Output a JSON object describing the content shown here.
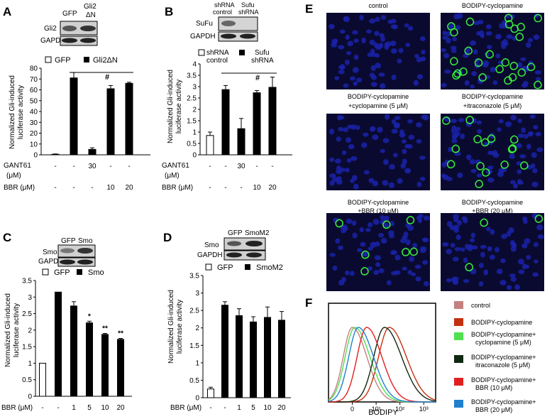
{
  "panels": {
    "A": {
      "label": "A",
      "blot": {
        "lanes": [
          "GFP",
          "Gli2",
          "ΔN"
        ],
        "rows": [
          "Gli2",
          "GAPDH"
        ]
      },
      "legend": [
        {
          "name": "GFP",
          "fill": "#ffffff"
        },
        {
          "name": "Gli2ΔN",
          "fill": "#000000"
        }
      ],
      "ylabel": [
        "Normalized Gli-induced",
        "luciferase activity"
      ],
      "ticks": [
        "0",
        "10",
        "20",
        "30",
        "40",
        "50",
        "60",
        "70",
        "80"
      ],
      "row_labels": [
        "GANT61",
        "(μM)",
        "BBR (μM)"
      ],
      "gant61": [
        "-",
        "-",
        "30",
        "-",
        "-"
      ],
      "bbr": [
        "-",
        "-",
        "-",
        "10",
        "20"
      ],
      "sig": "#"
    },
    "B": {
      "label": "B",
      "blot": {
        "lanes": [
          "shRNA",
          "control",
          "Sufu",
          "shRNA"
        ],
        "rows": [
          "SuFu",
          "GAPDH"
        ]
      },
      "legend": [
        {
          "name1": "shRNA",
          "name2": "control",
          "fill": "#ffffff"
        },
        {
          "name1": "Sufu",
          "name2": "shRNA",
          "fill": "#000000"
        }
      ],
      "ylabel": [
        "Normalized Gli-induced",
        "luciferase activity"
      ],
      "ticks": [
        "0",
        "0.5",
        "1",
        "1.5",
        "2",
        "2.5",
        "3",
        "3.5",
        "4"
      ],
      "row_labels": [
        "GANT61",
        "(μM)",
        "BBR (μM)"
      ],
      "gant61": [
        "-",
        "-",
        "30",
        "-",
        "-"
      ],
      "bbr": [
        "-",
        "-",
        "-",
        "10",
        "20"
      ],
      "sig": "#"
    },
    "C": {
      "label": "C",
      "blot": {
        "lanes": [
          "GFP",
          "Smo"
        ],
        "rows": [
          "Smo",
          "GAPDH"
        ]
      },
      "legend": [
        {
          "name": "GFP",
          "fill": "#ffffff"
        },
        {
          "name": "Smo",
          "fill": "#000000"
        }
      ],
      "ylabel": [
        "Normalized Gli-induced",
        "luciferase activity"
      ],
      "ticks": [
        "0",
        "0.5",
        "1",
        "1.5",
        "2",
        "2.5",
        "3",
        "3.5"
      ],
      "row_label": "BBR (μM)",
      "bbr": [
        "-",
        "-",
        "1",
        "5",
        "10",
        "20"
      ],
      "sig": [
        "",
        "",
        "",
        "*",
        "**",
        "**"
      ]
    },
    "D": {
      "label": "D",
      "blot": {
        "lanes": [
          "GFP",
          "SmoM2"
        ],
        "rows": [
          "Smo",
          "GAPDH"
        ]
      },
      "legend": [
        {
          "name": "GFP",
          "fill": "#ffffff"
        },
        {
          "name": "SmoM2",
          "fill": "#000000"
        }
      ],
      "ylabel": [
        "Normalized Gli-induced",
        "luciferase activity"
      ],
      "ticks": [
        "0",
        "0.5",
        "1",
        "1.5",
        "2",
        "2.5",
        "3",
        "3.5"
      ],
      "row_label": "BBR (μM)",
      "bbr": [
        "-",
        "-",
        "1",
        "5",
        "10",
        "20"
      ]
    },
    "E": {
      "label": "E",
      "images": [
        {
          "lines": [
            "control"
          ],
          "cells": []
        },
        {
          "lines": [
            "BODIPY-cyclopamine"
          ],
          "cells": []
        },
        {
          "lines": [
            "BODIPY-cyclopamine",
            "+cyclopamine (5 μM)"
          ],
          "cells": []
        },
        {
          "lines": [
            "BODIPY-cyclopamine",
            "+itraconazole (5 μM)"
          ],
          "cells": []
        },
        {
          "lines": [
            "BODIPY-cyclopamine",
            "+BBR (10 μM)"
          ],
          "cells": []
        },
        {
          "lines": [
            "BODIPY-cyclopamine",
            "+BBR (20 μM)"
          ],
          "cells": []
        }
      ],
      "colors": {
        "nuclei": "#1a22a8",
        "bodipy": "#3cff3c",
        "background": "#0a0a30"
      }
    },
    "F": {
      "label": "F",
      "xlabel": "BODIPY",
      "xticks": [
        "0",
        "10¹",
        "10²",
        "10³"
      ],
      "legend": [
        {
          "lines": [
            "control"
          ],
          "color": "#c48080"
        },
        {
          "lines": [
            "BODIPY-cyclopamine"
          ],
          "color": "#c43010"
        },
        {
          "lines": [
            "BODIPY-cyclopamine+",
            "cyclopamine (5 μM)"
          ],
          "color": "#50e050"
        },
        {
          "lines": [
            "BODIPY-cyclopamine+",
            "itraconazole (5 μM)"
          ],
          "color": "#102810"
        },
        {
          "lines": [
            "BODIPY-cyclopamine+",
            "BBR (10 μM)"
          ],
          "color": "#e02020"
        },
        {
          "lines": [
            "BODIPY-cyclopamine+",
            "BBR (20 μM)"
          ],
          "color": "#2080d0"
        }
      ]
    }
  },
  "chart_data": [
    {
      "type": "bar",
      "panel": "A",
      "ylabel": "Normalized Gli-induced luciferase activity",
      "ylim": [
        0,
        80
      ],
      "categories": [
        "1",
        "2",
        "3",
        "4",
        "5"
      ],
      "values": [
        0.5,
        71,
        5,
        61,
        66
      ],
      "errors": [
        0.3,
        5,
        1.5,
        3,
        1
      ],
      "fills": [
        "white",
        "black",
        "black",
        "black",
        "black"
      ]
    },
    {
      "type": "bar",
      "panel": "B",
      "ylabel": "Normalized Gli-induced luciferase activity",
      "ylim": [
        0,
        4
      ],
      "categories": [
        "1",
        "2",
        "3",
        "4",
        "5"
      ],
      "values": [
        0.85,
        2.87,
        1.15,
        2.73,
        2.97
      ],
      "errors": [
        0.15,
        0.18,
        0.45,
        0.1,
        0.45
      ],
      "fills": [
        "white",
        "black",
        "black",
        "black",
        "black"
      ]
    },
    {
      "type": "bar",
      "panel": "C",
      "ylabel": "Normalized Gli-induced luciferase activity",
      "ylim": [
        0,
        3.5
      ],
      "categories": [
        "1",
        "2",
        "3",
        "4",
        "5",
        "6"
      ],
      "values": [
        1.0,
        3.15,
        2.73,
        2.22,
        1.87,
        1.72
      ],
      "errors": [
        0,
        0,
        0.13,
        0.05,
        0.03,
        0.03
      ],
      "fills": [
        "white",
        "black",
        "black",
        "black",
        "black",
        "black"
      ]
    },
    {
      "type": "bar",
      "panel": "D",
      "ylabel": "Normalized Gli-induced luciferase activity",
      "ylim": [
        0,
        3.5
      ],
      "categories": [
        "1",
        "2",
        "3",
        "4",
        "5",
        "6"
      ],
      "values": [
        0.25,
        2.65,
        2.35,
        2.17,
        2.3,
        2.22
      ],
      "errors": [
        0.05,
        0.1,
        0.2,
        0.15,
        0.3,
        0.25
      ],
      "fills": [
        "white",
        "black",
        "black",
        "black",
        "black",
        "black"
      ]
    },
    {
      "type": "line",
      "panel": "F",
      "xlabel": "BODIPY",
      "x_scale": "log",
      "xlim": [
        -1,
        3.5
      ],
      "series": [
        {
          "name": "control",
          "peak_x": 0.0,
          "width": 0.38,
          "color": "#c48080"
        },
        {
          "name": "BODIPY-cyclopamine",
          "peak_x": 1.55,
          "width": 0.45,
          "color": "#c43010"
        },
        {
          "name": "BODIPY-cyclopamine+cyclopamine (5 μM)",
          "peak_x": 0.1,
          "width": 0.4,
          "color": "#50e050"
        },
        {
          "name": "BODIPY-cyclopamine+itraconazole (5 μM)",
          "peak_x": 1.35,
          "width": 0.45,
          "color": "#102810"
        },
        {
          "name": "BODIPY-cyclopamine+BBR (10 μM)",
          "peak_x": 0.6,
          "width": 0.4,
          "color": "#e02020"
        },
        {
          "name": "BODIPY-cyclopamine+BBR (20 μM)",
          "peak_x": 0.25,
          "width": 0.4,
          "color": "#2080d0"
        }
      ]
    }
  ]
}
